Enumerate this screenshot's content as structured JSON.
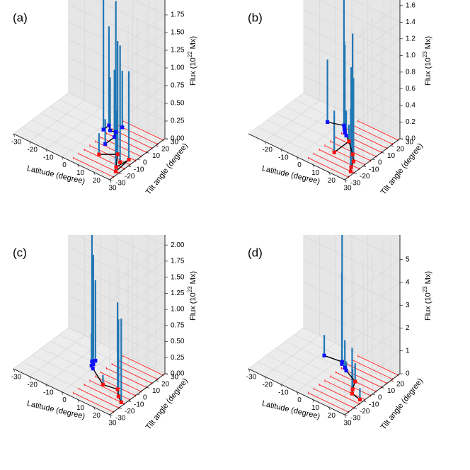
{
  "chart_data": [
    {
      "panel_label": "(a)",
      "type": "3d-stem",
      "xlabel": "Latitude (degree)",
      "ylabel": "Tilt angle (degree)",
      "zlabel_prefix": "Flux (10",
      "zlabel_exp": "22",
      "zlabel_suffix": " Mx)",
      "xlim": [
        -30,
        30
      ],
      "ylim": [
        -30,
        30
      ],
      "zlim": [
        0,
        2.0
      ],
      "xticks": [
        "-30",
        "-20",
        "-10",
        "0",
        "10",
        "20",
        "30"
      ],
      "yticks": [
        "-30",
        "-20",
        "-10",
        "0",
        "10",
        "20",
        "30"
      ],
      "zticks": [
        "0.00",
        "0.25",
        "0.50",
        "0.75",
        "1.00",
        "1.25",
        "1.50",
        "1.75"
      ],
      "z_tick_values": [
        0,
        0.25,
        0.5,
        0.75,
        1.0,
        1.25,
        1.5,
        1.75
      ],
      "x_tick_values": [
        -30,
        -20,
        -10,
        0,
        10,
        20,
        30
      ],
      "y_tick_values": [
        -30,
        -20,
        -10,
        0,
        10,
        20,
        30
      ],
      "band_tilts": [
        -26,
        -20,
        -14,
        -8,
        -2,
        4,
        10,
        16,
        22,
        28
      ],
      "band_lat_min": 5,
      "band_lat_max": 30,
      "band_tilt_min": -30,
      "band_tilt_max": 30,
      "points": [
        {
          "lat": 2,
          "tilt": 12,
          "flux": 1.9,
          "hemi": "north"
        },
        {
          "lat": 2,
          "tilt": 18,
          "flux": 1.4,
          "hemi": "north"
        },
        {
          "lat": 5,
          "tilt": 14,
          "flux": 0.75,
          "hemi": "north"
        },
        {
          "lat": 8,
          "tilt": 15,
          "flux": 1.85,
          "hemi": "north"
        },
        {
          "lat": 8,
          "tilt": 22,
          "flux": 0.8,
          "hemi": "north"
        },
        {
          "lat": 10,
          "tilt": 10,
          "flux": 0.95,
          "hemi": "north"
        },
        {
          "lat": 10,
          "tilt": 0,
          "flux": 0.35,
          "hemi": "north"
        },
        {
          "lat": 13,
          "tilt": -12,
          "flux": 0.3,
          "hemi": "south"
        },
        {
          "lat": 20,
          "tilt": -4,
          "flux": 1.6,
          "hemi": "south"
        },
        {
          "lat": 25,
          "tilt": -10,
          "flux": 1.65,
          "hemi": "south"
        },
        {
          "lat": 27,
          "tilt": -4,
          "flux": 1.25,
          "hemi": "south"
        },
        {
          "lat": 26,
          "tilt": -16,
          "flux": 0.8,
          "hemi": "south"
        },
        {
          "lat": 28,
          "tilt": -20,
          "flux": 0.7,
          "hemi": "south"
        }
      ],
      "path_north": [
        [
          2,
          12
        ],
        [
          2,
          18
        ],
        [
          5,
          14
        ],
        [
          8,
          15
        ],
        [
          10,
          10
        ],
        [
          10,
          0
        ]
      ],
      "path_south": [
        [
          13,
          -12
        ],
        [
          20,
          -4
        ],
        [
          26,
          -16
        ],
        [
          27,
          -4
        ],
        [
          28,
          -20
        ]
      ]
    },
    {
      "panel_label": "(b)",
      "type": "3d-stem",
      "xlabel": "Latitude (degree)",
      "ylabel": "Tilt angle (degree)",
      "zlabel_prefix": "Flux (10",
      "zlabel_exp": "23",
      "zlabel_suffix": " Mx)",
      "xlim": [
        -30,
        30
      ],
      "ylim": [
        -30,
        30
      ],
      "zlim": [
        0,
        1.7
      ],
      "xticks": [
        "-20",
        "-10",
        "0",
        "10",
        "20",
        "30"
      ],
      "yticks": [
        "-30",
        "-20",
        "-10",
        "0",
        "10",
        "20",
        "30"
      ],
      "zticks": [
        "0.0",
        "0.2",
        "0.4",
        "0.6",
        "0.8",
        "1.0",
        "1.2",
        "1.4",
        "1.6"
      ],
      "z_tick_values": [
        0,
        0.2,
        0.4,
        0.6,
        0.8,
        1.0,
        1.2,
        1.4,
        1.6
      ],
      "x_tick_values": [
        -20,
        -10,
        0,
        10,
        20,
        30
      ],
      "y_tick_values": [
        -30,
        -20,
        -10,
        0,
        10,
        20,
        30
      ],
      "band_tilts": [
        -26,
        -20,
        -14,
        -8,
        -2,
        4,
        10,
        16,
        22,
        28
      ],
      "band_lat_min": 5,
      "band_lat_max": 30,
      "band_tilt_min": -30,
      "band_tilt_max": 30,
      "points": [
        {
          "lat": -6,
          "tilt": 14,
          "flux": 0.75,
          "hemi": "north"
        },
        {
          "lat": 2,
          "tilt": 18,
          "flux": 1.6,
          "hemi": "north"
        },
        {
          "lat": 4,
          "tilt": 15,
          "flux": 1.05,
          "hemi": "north"
        },
        {
          "lat": 6,
          "tilt": 12,
          "flux": 1.05,
          "hemi": "north"
        },
        {
          "lat": 8,
          "tilt": 10,
          "flux": 0.3,
          "hemi": "north"
        },
        {
          "lat": 12,
          "tilt": 6,
          "flux": 0.2,
          "hemi": "south"
        },
        {
          "lat": 12,
          "tilt": -10,
          "flux": 0.5,
          "hemi": "south"
        },
        {
          "lat": 20,
          "tilt": -4,
          "flux": 1.45,
          "hemi": "south"
        },
        {
          "lat": 24,
          "tilt": -10,
          "flux": 1.0,
          "hemi": "south"
        },
        {
          "lat": 26,
          "tilt": -16,
          "flux": 1.2,
          "hemi": "south"
        },
        {
          "lat": 28,
          "tilt": -20,
          "flux": 0.75,
          "hemi": "south"
        }
      ],
      "path_north": [
        [
          -6,
          14
        ],
        [
          2,
          18
        ],
        [
          4,
          15
        ],
        [
          6,
          12
        ],
        [
          8,
          10
        ],
        [
          12,
          6
        ]
      ],
      "path_south": [
        [
          12,
          -10
        ],
        [
          12,
          6
        ],
        [
          20,
          -4
        ],
        [
          24,
          -10
        ],
        [
          26,
          -16
        ],
        [
          28,
          -20
        ]
      ]
    },
    {
      "panel_label": "(c)",
      "type": "3d-stem",
      "xlabel": "Latitude (degree)",
      "ylabel": "Tilt angle (degree)",
      "zlabel_prefix": "Flux (10",
      "zlabel_exp": "23",
      "zlabel_suffix": " Mx)",
      "xlim": [
        -30,
        30
      ],
      "ylim": [
        -30,
        30
      ],
      "zlim": [
        0,
        2.2
      ],
      "xticks": [
        "-30",
        "-20",
        "-10",
        "0",
        "10",
        "20",
        "30"
      ],
      "yticks": [
        "-30",
        "-20",
        "-10",
        "0",
        "10",
        "20",
        "30"
      ],
      "zticks": [
        "0.00",
        "0.25",
        "0.50",
        "0.75",
        "1.00",
        "1.25",
        "1.50",
        "1.75",
        "2.00"
      ],
      "z_tick_values": [
        0,
        0.25,
        0.5,
        0.75,
        1.0,
        1.25,
        1.5,
        1.75,
        2.0
      ],
      "x_tick_values": [
        -30,
        -20,
        -10,
        0,
        10,
        20,
        30
      ],
      "y_tick_values": [
        -30,
        -20,
        -10,
        0,
        10,
        20,
        30
      ],
      "band_tilts": [
        -26,
        -20,
        -14,
        -8,
        -2,
        4,
        10,
        16,
        22,
        28
      ],
      "band_lat_min": 5,
      "band_lat_max": 30,
      "band_tilt_min": -30,
      "band_tilt_max": 30,
      "points": [
        {
          "lat": -4,
          "tilt": 10,
          "flux": 2.0,
          "hemi": "north"
        },
        {
          "lat": -3,
          "tilt": 12,
          "flux": 1.25,
          "hemi": "north"
        },
        {
          "lat": -2,
          "tilt": 8,
          "flux": 1.7,
          "hemi": "north"
        },
        {
          "lat": -2,
          "tilt": 6,
          "flux": 0.5,
          "hemi": "north"
        },
        {
          "lat": 0,
          "tilt": 4,
          "flux": 0.2,
          "hemi": "north"
        },
        {
          "lat": 12,
          "tilt": -6,
          "flux": 0.15,
          "hemi": "south"
        },
        {
          "lat": 20,
          "tilt": -4,
          "flux": 1.35,
          "hemi": "south"
        },
        {
          "lat": 24,
          "tilt": -10,
          "flux": 1.2,
          "hemi": "south"
        },
        {
          "lat": 28,
          "tilt": -14,
          "flux": 1.3,
          "hemi": "south"
        }
      ],
      "path_north": [
        [
          -4,
          10
        ],
        [
          -3,
          12
        ],
        [
          -2,
          8
        ],
        [
          -2,
          6
        ],
        [
          0,
          4
        ]
      ],
      "path_south": [
        [
          0,
          4
        ],
        [
          12,
          -6
        ],
        [
          20,
          -4
        ],
        [
          24,
          -10
        ],
        [
          28,
          -14
        ]
      ]
    },
    {
      "panel_label": "(d)",
      "type": "3d-stem",
      "xlabel": "Latitude (degree)",
      "ylabel": "Tilt angle (degree)",
      "zlabel_prefix": "Flux (10",
      "zlabel_exp": "23",
      "zlabel_suffix": " Mx)",
      "xlim": [
        -30,
        30
      ],
      "ylim": [
        -30,
        30
      ],
      "zlim": [
        0,
        6.2
      ],
      "xticks": [
        "-30",
        "-20",
        "-10",
        "0",
        "10",
        "20",
        "30"
      ],
      "yticks": [
        "-30",
        "-20",
        "-10",
        "0",
        "10",
        "20"
      ],
      "zticks": [
        "0",
        "1",
        "2",
        "3",
        "4",
        "5"
      ],
      "z_tick_values": [
        0,
        1,
        2,
        3,
        4,
        5
      ],
      "x_tick_values": [
        -30,
        -20,
        -10,
        0,
        10,
        20,
        30
      ],
      "y_tick_values": [
        -30,
        -20,
        -10,
        0,
        10,
        20
      ],
      "band_tilts": [
        -26,
        -20,
        -14,
        -8,
        -2,
        4,
        10,
        16,
        22,
        28
      ],
      "band_lat_min": 5,
      "band_lat_max": 30,
      "band_tilt_min": -30,
      "band_tilt_max": 30,
      "points": [
        {
          "lat": -8,
          "tilt": 14,
          "flux": 0.9,
          "hemi": "north"
        },
        {
          "lat": 2,
          "tilt": 16,
          "flux": 5.6,
          "hemi": "north"
        },
        {
          "lat": 3,
          "tilt": 14,
          "flux": 4.0,
          "hemi": "north"
        },
        {
          "lat": 6,
          "tilt": 12,
          "flux": 1.2,
          "hemi": "north"
        },
        {
          "lat": 8,
          "tilt": 10,
          "flux": 0.4,
          "hemi": "north"
        },
        {
          "lat": 17,
          "tilt": 4,
          "flux": 0.8,
          "hemi": "south"
        },
        {
          "lat": 20,
          "tilt": -4,
          "flux": 0.9,
          "hemi": "south"
        },
        {
          "lat": 22,
          "tilt": -8,
          "flux": 2.0,
          "hemi": "south"
        },
        {
          "lat": 28,
          "tilt": -10,
          "flux": 0.5,
          "hemi": "south"
        }
      ],
      "path_north": [
        [
          -8,
          14
        ],
        [
          2,
          16
        ],
        [
          3,
          14
        ],
        [
          6,
          12
        ],
        [
          8,
          10
        ],
        [
          17,
          4
        ]
      ],
      "path_south": [
        [
          17,
          4
        ],
        [
          20,
          -4
        ],
        [
          22,
          -8
        ],
        [
          28,
          -10
        ]
      ]
    }
  ]
}
